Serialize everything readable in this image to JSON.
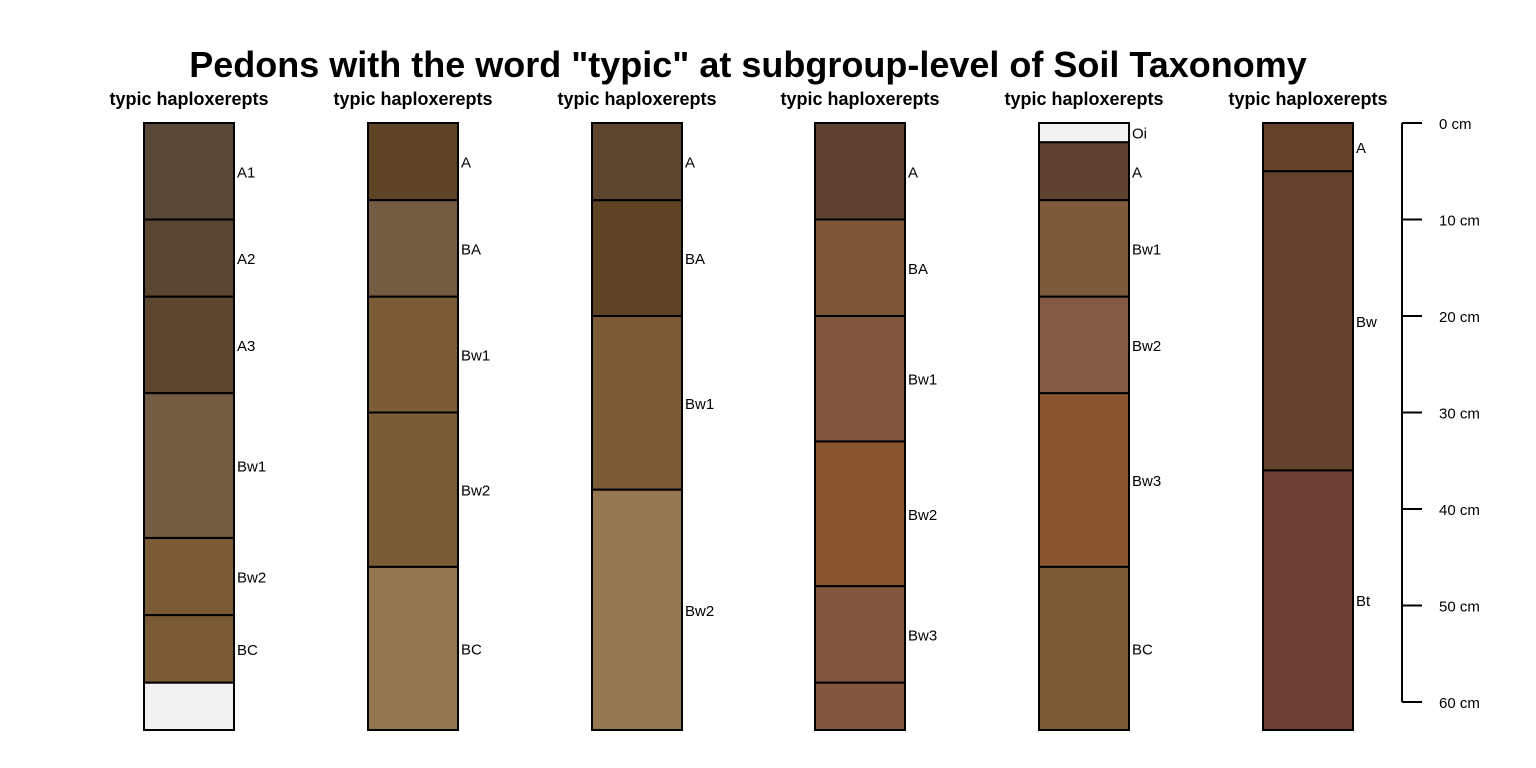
{
  "chart_data": {
    "type": "soil-profile",
    "title": "Pedons with the word \"typic\" at subgroup-level of Soil Taxonomy",
    "depth_unit": "cm",
    "depth_ticks": [
      0,
      10,
      20,
      30,
      40,
      50,
      60
    ],
    "depth_tick_labels": [
      "0 cm",
      "10 cm",
      "20 cm",
      "30 cm",
      "40 cm",
      "50 cm",
      "60 cm"
    ],
    "ylim": [
      0,
      63
    ],
    "profiles": [
      {
        "label": "typic haploxerepts",
        "horizons": [
          {
            "name": "A1",
            "top": 0,
            "bottom": 10,
            "color": "#574838"
          },
          {
            "name": "A2",
            "top": 10,
            "bottom": 18,
            "color": "#5A4530"
          },
          {
            "name": "A3",
            "top": 18,
            "bottom": 28,
            "color": "#5D462F"
          },
          {
            "name": "Bw1",
            "top": 28,
            "bottom": 43,
            "color": "#735C41"
          },
          {
            "name": "Bw2",
            "top": 43,
            "bottom": 51,
            "color": "#7A5B36"
          },
          {
            "name": "BC",
            "top": 51,
            "bottom": 58,
            "color": "#7A5B36"
          },
          {
            "name": "",
            "top": 58,
            "bottom": 63,
            "color": "#F2F2F2"
          }
        ]
      },
      {
        "label": "typic haploxerepts",
        "horizons": [
          {
            "name": "A",
            "top": 0,
            "bottom": 8,
            "color": "#5E4324"
          },
          {
            "name": "BA",
            "top": 8,
            "bottom": 18,
            "color": "#735C41"
          },
          {
            "name": "Bw1",
            "top": 18,
            "bottom": 30,
            "color": "#7B5C36"
          },
          {
            "name": "Bw2",
            "top": 30,
            "bottom": 46,
            "color": "#7A5C36"
          },
          {
            "name": "BC",
            "top": 46,
            "bottom": 63,
            "color": "#937650"
          }
        ]
      },
      {
        "label": "typic haploxerepts",
        "horizons": [
          {
            "name": "A",
            "top": 0,
            "bottom": 8,
            "color": "#5D452E"
          },
          {
            "name": "BA",
            "top": 8,
            "bottom": 20,
            "color": "#5E4324"
          },
          {
            "name": "Bw1",
            "top": 20,
            "bottom": 38,
            "color": "#7A5B36"
          },
          {
            "name": "Bw2",
            "top": 38,
            "bottom": 63,
            "color": "#957851"
          }
        ]
      },
      {
        "label": "typic haploxerepts",
        "horizons": [
          {
            "name": "A",
            "top": 0,
            "bottom": 10,
            "color": "#5E4231"
          },
          {
            "name": "BA",
            "top": 10,
            "bottom": 20,
            "color": "#7D5838"
          },
          {
            "name": "Bw1",
            "top": 20,
            "bottom": 33,
            "color": "#825740"
          },
          {
            "name": "Bw2",
            "top": 33,
            "bottom": 48,
            "color": "#8B552F"
          },
          {
            "name": "Bw3",
            "top": 48,
            "bottom": 58,
            "color": "#825740"
          },
          {
            "name": "",
            "top": 58,
            "bottom": 63,
            "color": "#825740"
          }
        ]
      },
      {
        "label": "typic haploxerepts",
        "horizons": [
          {
            "name": "Oi",
            "top": 0,
            "bottom": 2,
            "color": "#F2F2F2"
          },
          {
            "name": "A",
            "top": 2,
            "bottom": 8,
            "color": "#5E4231"
          },
          {
            "name": "Bw1",
            "top": 8,
            "bottom": 18,
            "color": "#7D5A3B"
          },
          {
            "name": "Bw2",
            "top": 18,
            "bottom": 28,
            "color": "#825942"
          },
          {
            "name": "Bw3",
            "top": 28,
            "bottom": 46,
            "color": "#8B552F"
          },
          {
            "name": "BC",
            "top": 46,
            "bottom": 63,
            "color": "#7B5C36"
          }
        ]
      },
      {
        "label": "typic haploxerepts",
        "horizons": [
          {
            "name": "A",
            "top": 0,
            "bottom": 5,
            "color": "#63412A"
          },
          {
            "name": "Bw",
            "top": 5,
            "bottom": 36,
            "color": "#63412C"
          },
          {
            "name": "Bt",
            "top": 36,
            "bottom": 63,
            "color": "#6B3F33"
          }
        ]
      }
    ]
  }
}
